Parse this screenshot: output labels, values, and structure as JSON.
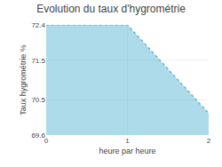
{
  "chart_data": {
    "type": "area",
    "title": "Evolution du taux d'hygrométrie",
    "xlabel": "heure par heure",
    "ylabel": "Taux hygrométrie %",
    "x": [
      0,
      1,
      2
    ],
    "values": [
      72.4,
      72.4,
      70.15
    ],
    "color": "#5bb8d4",
    "line_style": "dotted",
    "xlim": [
      0,
      2
    ],
    "xticks": [
      0,
      1,
      2
    ],
    "ylim": [
      69.6,
      72.4
    ],
    "yticks": [
      69.6,
      70.5,
      71.5,
      72.4
    ],
    "grid": true
  }
}
